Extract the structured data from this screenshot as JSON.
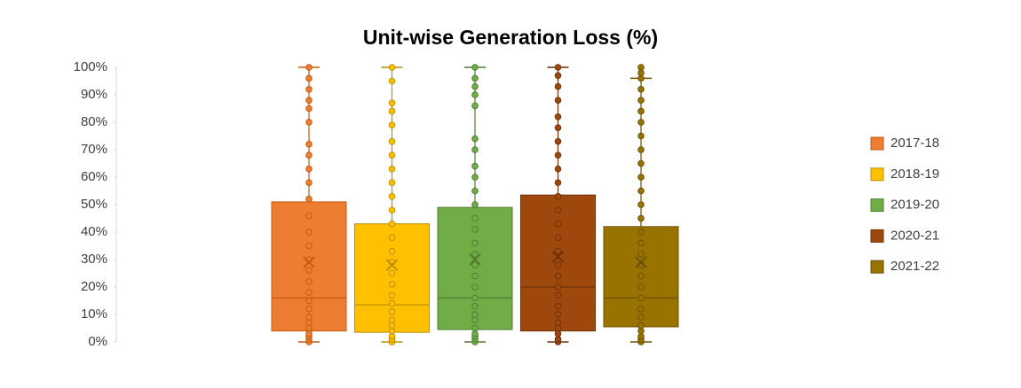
{
  "chart_data": {
    "type": "box",
    "title": "Unit-wise Generation Loss (%)",
    "ylim": [
      0,
      100
    ],
    "yticks": [
      {
        "value": 0,
        "label": "0%"
      },
      {
        "value": 10,
        "label": "10%"
      },
      {
        "value": 20,
        "label": "20%"
      },
      {
        "value": 30,
        "label": "30%"
      },
      {
        "value": 40,
        "label": "40%"
      },
      {
        "value": 50,
        "label": "50%"
      },
      {
        "value": 60,
        "label": "60%"
      },
      {
        "value": 70,
        "label": "70%"
      },
      {
        "value": 80,
        "label": "80%"
      },
      {
        "value": 90,
        "label": "90%"
      },
      {
        "value": 100,
        "label": "100%"
      }
    ],
    "legend": "right",
    "series": [
      {
        "name": "2017-18",
        "color": "#ED7D31",
        "stroke": "#C55A11",
        "min": 0,
        "q1": 4,
        "median": 16,
        "q3": 51,
        "max": 100,
        "mean": 29,
        "points": [
          0,
          1,
          2,
          3,
          5,
          7,
          9,
          12,
          15,
          18,
          22,
          26,
          30,
          35,
          40,
          46,
          52,
          58,
          63,
          68,
          72,
          80,
          85,
          88,
          92,
          96,
          100
        ]
      },
      {
        "name": "2018-19",
        "color": "#FFC000",
        "stroke": "#BF9000",
        "min": 0,
        "q1": 3.5,
        "median": 13.5,
        "q3": 43,
        "max": 100,
        "mean": 28,
        "points": [
          0,
          1,
          2,
          4,
          6,
          8,
          11,
          14,
          17,
          21,
          25,
          29,
          33,
          38,
          43,
          48,
          53,
          58,
          63,
          68,
          73,
          79,
          84,
          87,
          95,
          100
        ]
      },
      {
        "name": "2019-20",
        "color": "#70AD47",
        "stroke": "#507E32",
        "min": 0,
        "q1": 4.5,
        "median": 16,
        "q3": 49,
        "max": 100,
        "mean": 30,
        "points": [
          0,
          1,
          2,
          3,
          5,
          8,
          10,
          13,
          16,
          20,
          24,
          28,
          32,
          36,
          41,
          45,
          50,
          55,
          60,
          64,
          70,
          74,
          86,
          90,
          93,
          96,
          100
        ]
      },
      {
        "name": "2020-21",
        "color": "#9E480E",
        "stroke": "#6E320A",
        "min": 0,
        "q1": 4,
        "median": 20,
        "q3": 53.5,
        "max": 100,
        "mean": 31,
        "points": [
          0,
          1,
          3,
          5,
          7,
          10,
          13,
          17,
          20,
          24,
          28,
          33,
          38,
          43,
          48,
          53,
          58,
          63,
          68,
          73,
          78,
          82,
          88,
          93,
          97,
          100
        ]
      },
      {
        "name": "2021-22",
        "color": "#997300",
        "stroke": "#6B5000",
        "min": 0,
        "q1": 5.5,
        "median": 16,
        "q3": 42,
        "max": 96,
        "mean": 29,
        "points": [
          0,
          1,
          2,
          4,
          6,
          9,
          12,
          16,
          20,
          24,
          28,
          32,
          36,
          40,
          45,
          50,
          55,
          60,
          65,
          70,
          75,
          80,
          84,
          88,
          92,
          96,
          98,
          100
        ]
      }
    ]
  }
}
